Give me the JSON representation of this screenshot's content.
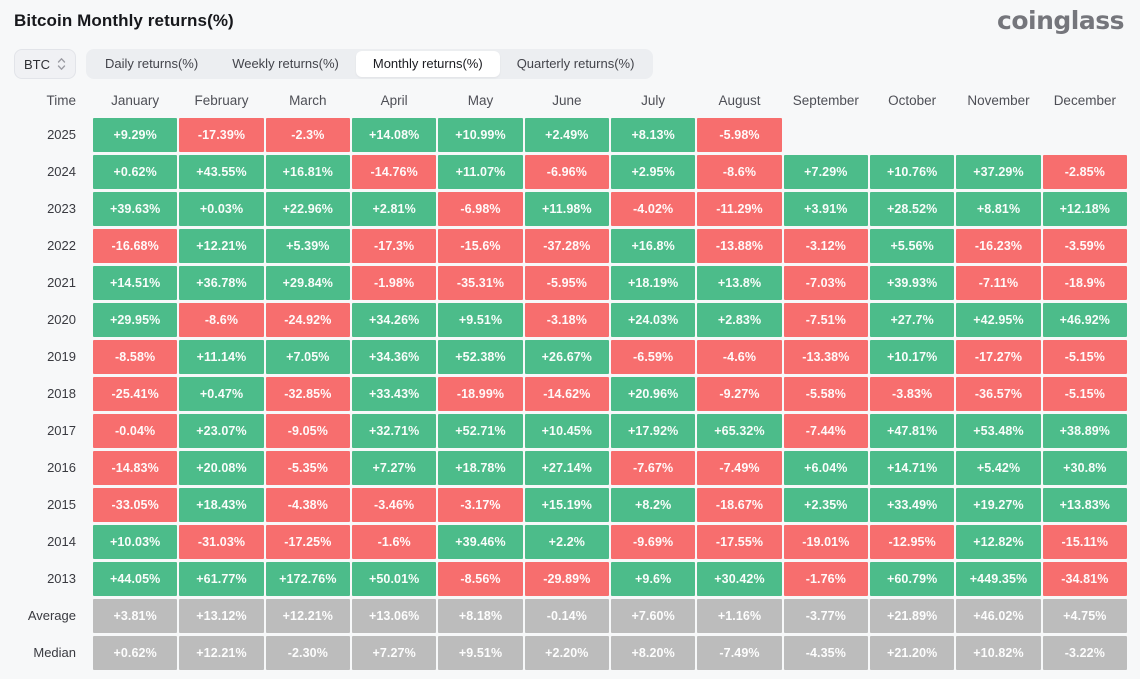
{
  "page": {
    "title": "Bitcoin Monthly returns(%)",
    "logo": "coinglass"
  },
  "controls": {
    "symbol_select": {
      "value": "BTC",
      "icon": "sort-chevrons-icon"
    },
    "tabs": [
      {
        "label": "Daily returns(%)",
        "active": false
      },
      {
        "label": "Weekly returns(%)",
        "active": false
      },
      {
        "label": "Monthly returns(%)",
        "active": true
      },
      {
        "label": "Quarterly returns(%)",
        "active": false
      }
    ]
  },
  "chart_data": {
    "type": "heatmap",
    "title": "Bitcoin Monthly returns(%)",
    "time_header": "Time",
    "columns": [
      "January",
      "February",
      "March",
      "April",
      "May",
      "June",
      "July",
      "August",
      "September",
      "October",
      "November",
      "December"
    ],
    "rows": [
      {
        "label": "2025",
        "summary": false,
        "values": [
          "+9.29%",
          "-17.39%",
          "-2.3%",
          "+14.08%",
          "+10.99%",
          "+2.49%",
          "+8.13%",
          "-5.98%",
          null,
          null,
          null,
          null
        ]
      },
      {
        "label": "2024",
        "summary": false,
        "values": [
          "+0.62%",
          "+43.55%",
          "+16.81%",
          "-14.76%",
          "+11.07%",
          "-6.96%",
          "+2.95%",
          "-8.6%",
          "+7.29%",
          "+10.76%",
          "+37.29%",
          "-2.85%"
        ]
      },
      {
        "label": "2023",
        "summary": false,
        "values": [
          "+39.63%",
          "+0.03%",
          "+22.96%",
          "+2.81%",
          "-6.98%",
          "+11.98%",
          "-4.02%",
          "-11.29%",
          "+3.91%",
          "+28.52%",
          "+8.81%",
          "+12.18%"
        ]
      },
      {
        "label": "2022",
        "summary": false,
        "values": [
          "-16.68%",
          "+12.21%",
          "+5.39%",
          "-17.3%",
          "-15.6%",
          "-37.28%",
          "+16.8%",
          "-13.88%",
          "-3.12%",
          "+5.56%",
          "-16.23%",
          "-3.59%"
        ]
      },
      {
        "label": "2021",
        "summary": false,
        "values": [
          "+14.51%",
          "+36.78%",
          "+29.84%",
          "-1.98%",
          "-35.31%",
          "-5.95%",
          "+18.19%",
          "+13.8%",
          "-7.03%",
          "+39.93%",
          "-7.11%",
          "-18.9%"
        ]
      },
      {
        "label": "2020",
        "summary": false,
        "values": [
          "+29.95%",
          "-8.6%",
          "-24.92%",
          "+34.26%",
          "+9.51%",
          "-3.18%",
          "+24.03%",
          "+2.83%",
          "-7.51%",
          "+27.7%",
          "+42.95%",
          "+46.92%"
        ]
      },
      {
        "label": "2019",
        "summary": false,
        "values": [
          "-8.58%",
          "+11.14%",
          "+7.05%",
          "+34.36%",
          "+52.38%",
          "+26.67%",
          "-6.59%",
          "-4.6%",
          "-13.38%",
          "+10.17%",
          "-17.27%",
          "-5.15%"
        ]
      },
      {
        "label": "2018",
        "summary": false,
        "values": [
          "-25.41%",
          "+0.47%",
          "-32.85%",
          "+33.43%",
          "-18.99%",
          "-14.62%",
          "+20.96%",
          "-9.27%",
          "-5.58%",
          "-3.83%",
          "-36.57%",
          "-5.15%"
        ]
      },
      {
        "label": "2017",
        "summary": false,
        "values": [
          "-0.04%",
          "+23.07%",
          "-9.05%",
          "+32.71%",
          "+52.71%",
          "+10.45%",
          "+17.92%",
          "+65.32%",
          "-7.44%",
          "+47.81%",
          "+53.48%",
          "+38.89%"
        ]
      },
      {
        "label": "2016",
        "summary": false,
        "values": [
          "-14.83%",
          "+20.08%",
          "-5.35%",
          "+7.27%",
          "+18.78%",
          "+27.14%",
          "-7.67%",
          "-7.49%",
          "+6.04%",
          "+14.71%",
          "+5.42%",
          "+30.8%"
        ]
      },
      {
        "label": "2015",
        "summary": false,
        "values": [
          "-33.05%",
          "+18.43%",
          "-4.38%",
          "-3.46%",
          "-3.17%",
          "+15.19%",
          "+8.2%",
          "-18.67%",
          "+2.35%",
          "+33.49%",
          "+19.27%",
          "+13.83%"
        ]
      },
      {
        "label": "2014",
        "summary": false,
        "values": [
          "+10.03%",
          "-31.03%",
          "-17.25%",
          "-1.6%",
          "+39.46%",
          "+2.2%",
          "-9.69%",
          "-17.55%",
          "-19.01%",
          "-12.95%",
          "+12.82%",
          "-15.11%"
        ]
      },
      {
        "label": "2013",
        "summary": false,
        "values": [
          "+44.05%",
          "+61.77%",
          "+172.76%",
          "+50.01%",
          "-8.56%",
          "-29.89%",
          "+9.6%",
          "+30.42%",
          "-1.76%",
          "+60.79%",
          "+449.35%",
          "-34.81%"
        ]
      },
      {
        "label": "Average",
        "summary": true,
        "values": [
          "+3.81%",
          "+13.12%",
          "+12.21%",
          "+13.06%",
          "+8.18%",
          "-0.14%",
          "+7.60%",
          "+1.16%",
          "-3.77%",
          "+21.89%",
          "+46.02%",
          "+4.75%"
        ]
      },
      {
        "label": "Median",
        "summary": true,
        "values": [
          "+0.62%",
          "+12.21%",
          "-2.30%",
          "+7.27%",
          "+9.51%",
          "+2.20%",
          "+8.20%",
          "-7.49%",
          "-4.35%",
          "+21.20%",
          "+10.82%",
          "-3.22%"
        ]
      }
    ],
    "colors": {
      "positive": "#4cbc8a",
      "negative": "#f76e6e",
      "summary": "#bcbcbc"
    }
  }
}
